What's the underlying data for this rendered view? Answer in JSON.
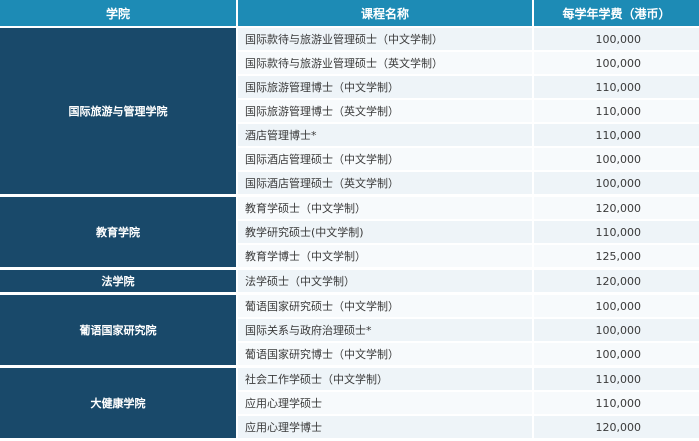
{
  "headers": {
    "school": "学院",
    "program": "课程名称",
    "fee": "每学年学费（港币）"
  },
  "groups": [
    {
      "school": "国际旅游与管理学院",
      "programs": [
        {
          "name": "国际款待与旅游业管理硕士（中文学制）",
          "fee": "100,000"
        },
        {
          "name": "国际款待与旅游业管理硕士（英文学制）",
          "fee": "100,000"
        },
        {
          "name": "国际旅游管理博士（中文学制）",
          "fee": "110,000"
        },
        {
          "name": "国际旅游管理博士（英文学制）",
          "fee": "110,000"
        },
        {
          "name": "酒店管理博士*",
          "fee": "110,000"
        },
        {
          "name": "国际酒店管理硕士（中文学制）",
          "fee": "100,000"
        },
        {
          "name": "国际酒店管理硕士（英文学制）",
          "fee": "100,000"
        }
      ]
    },
    {
      "school": "教育学院",
      "programs": [
        {
          "name": "教育学硕士（中文学制）",
          "fee": "120,000"
        },
        {
          "name": "教学研究硕士(中文学制)",
          "fee": "110,000"
        },
        {
          "name": "教育学博士（中文学制）",
          "fee": "125,000"
        }
      ]
    },
    {
      "school": "法学院",
      "programs": [
        {
          "name": "法学硕士（中文学制）",
          "fee": "120,000"
        }
      ]
    },
    {
      "school": "葡语国家研究院",
      "programs": [
        {
          "name": "葡语国家研究硕士（中文学制）",
          "fee": "100,000"
        },
        {
          "name": "国际关系与政府治理硕士*",
          "fee": "100,000"
        },
        {
          "name": "葡语国家研究博士（中文学制）",
          "fee": "100,000"
        }
      ]
    },
    {
      "school": "大健康学院",
      "programs": [
        {
          "name": "社会工作学硕士（中文学制）",
          "fee": "110,000"
        },
        {
          "name": "应用心理学硕士",
          "fee": "110,000"
        },
        {
          "name": "应用心理学博士",
          "fee": "120,000"
        }
      ]
    }
  ]
}
